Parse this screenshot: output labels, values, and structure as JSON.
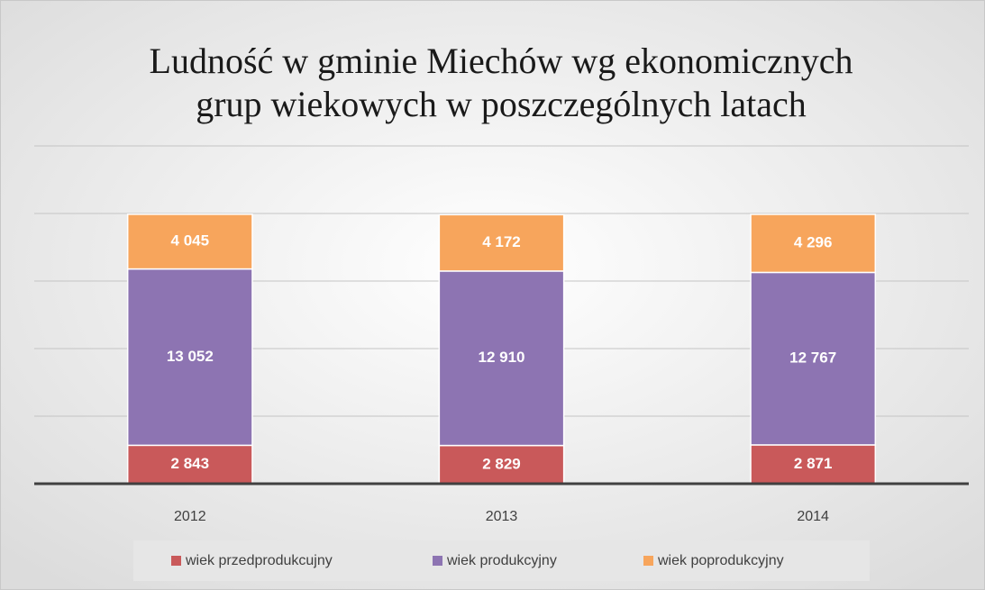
{
  "chart_data": {
    "type": "stacked_bar",
    "title": [
      "Ludność w gminie Miechów wg ekonomicznych",
      "grup wiekowych w poszczególnych latach"
    ],
    "categories": [
      "2012",
      "2013",
      "2014"
    ],
    "series": [
      {
        "name": "wiek przedprodukcujny",
        "color": "#c9595a",
        "values": [
          2843,
          2829,
          2871
        ],
        "value_labels": [
          "2 843",
          "2 829",
          "2 871"
        ]
      },
      {
        "name": "wiek produkcyjny",
        "color": "#8d74b2",
        "values": [
          13052,
          12910,
          12767
        ],
        "value_labels": [
          "13 052",
          "12 910",
          "12 767"
        ]
      },
      {
        "name": "wiek poprodukcyjny",
        "color": "#f7a55c",
        "values": [
          4045,
          4172,
          4296
        ],
        "value_labels": [
          "4 045",
          "4 172",
          "4 296"
        ]
      }
    ],
    "ylim": [
      0,
      25000
    ],
    "yticks": [
      0,
      5000,
      10000,
      15000,
      20000,
      25000
    ],
    "grid": true,
    "legend": "bottom"
  }
}
